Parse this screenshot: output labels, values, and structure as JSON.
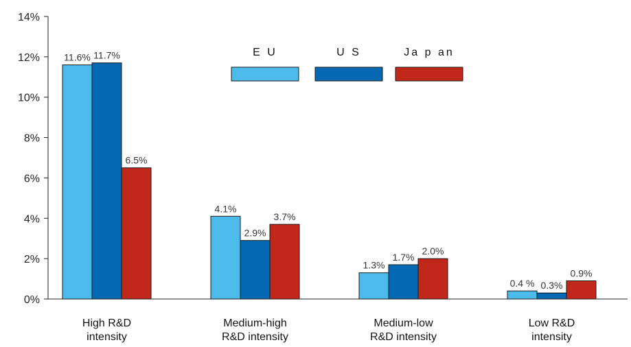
{
  "chart_data": {
    "type": "bar",
    "categories": [
      [
        "High R&D",
        "intensity"
      ],
      [
        "Medium-high",
        "R&D intensity"
      ],
      [
        "Medium-low",
        "R&D intensity"
      ],
      [
        "Low R&D",
        "intensity"
      ]
    ],
    "series": [
      {
        "name": "EU",
        "color": "#4dbbe9",
        "values": [
          11.6,
          4.1,
          1.3,
          0.4
        ],
        "labels": [
          "11.6%",
          "4.1%",
          "1.3%",
          "0.4 %"
        ]
      },
      {
        "name": "US",
        "color": "#0568b3",
        "values": [
          11.7,
          2.9,
          1.7,
          0.3
        ],
        "labels": [
          "11.7%",
          "2.9%",
          "1.7%",
          "0.3%"
        ]
      },
      {
        "name": "Japan",
        "color": "#c0281c",
        "values": [
          6.5,
          3.7,
          2.0,
          0.9
        ],
        "labels": [
          "6.5%",
          "3.7%",
          "2.0%",
          "0.9%"
        ]
      }
    ],
    "legend_labels": [
      "E U",
      "U S",
      "Ja p an"
    ],
    "yticks": [
      "0%",
      "2%",
      "4%",
      "6%",
      "8%",
      "10%",
      "12%",
      "14%"
    ],
    "ylim": [
      0,
      14
    ],
    "legend_position": "top-center",
    "grid": false
  }
}
